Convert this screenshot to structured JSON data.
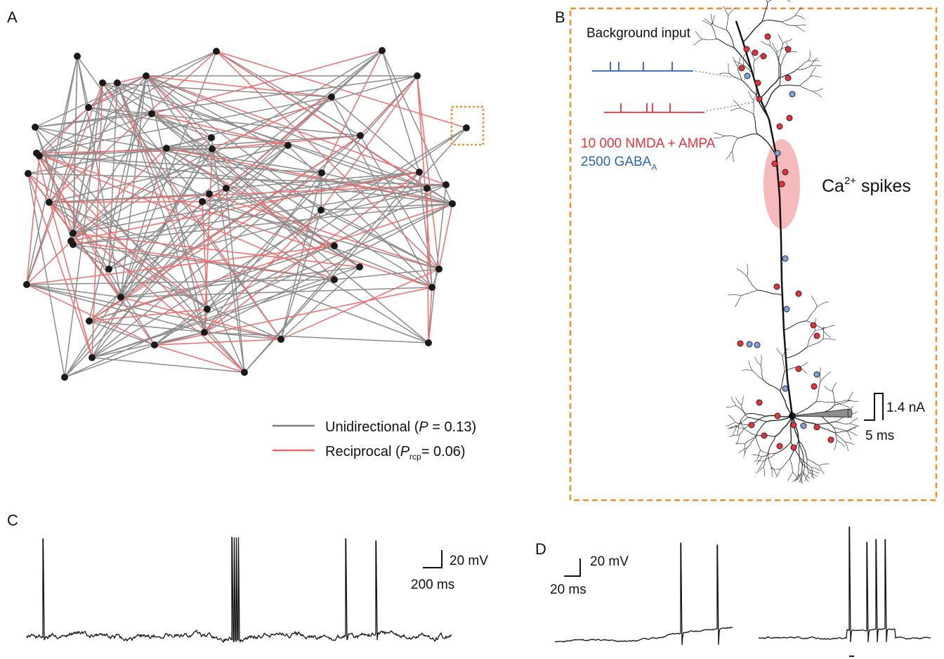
{
  "panels": {
    "a": {
      "label": "A",
      "legend": {
        "unidirectional": {
          "text": "Unidirectional (",
          "symbol": "P",
          "value": " = 0.13)"
        },
        "reciprocal": {
          "text": "Reciprocal (",
          "symbol": "P",
          "subscript": "rcp",
          "value": "= 0.06)"
        }
      }
    },
    "b": {
      "label": "B",
      "input_title": "Background input",
      "excitatory": "10 000 NMDA + AMPA",
      "inhibitory": {
        "text": "2500 GABA",
        "subscript": "A"
      },
      "calcium": {
        "text": "Ca",
        "superscript": "2+",
        "suffix": " spikes"
      },
      "scale_current": "1.4 nA",
      "scale_time": "5 ms"
    },
    "c": {
      "label": "C",
      "scale_voltage": "20 mV",
      "scale_time": "200 ms"
    },
    "d": {
      "label": "D",
      "scale_voltage": "20 mV",
      "scale_time": "20 ms"
    }
  }
}
